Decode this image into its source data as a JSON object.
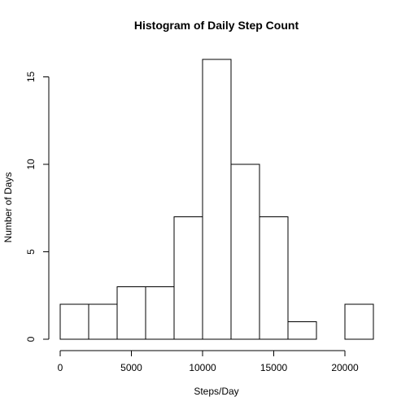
{
  "chart_data": {
    "type": "bar",
    "title": "Histogram of Daily Step Count",
    "xlabel": "Steps/Day",
    "ylabel": "Number of Days",
    "bin_edges": [
      0,
      2000,
      4000,
      6000,
      8000,
      10000,
      12000,
      14000,
      16000,
      18000,
      20000,
      22000
    ],
    "values": [
      2,
      2,
      3,
      3,
      7,
      16,
      10,
      7,
      1,
      0,
      2
    ],
    "xlim": [
      0,
      22000
    ],
    "ylim": [
      0,
      16
    ],
    "x_ticks": [
      0,
      5000,
      10000,
      15000,
      20000
    ],
    "x_tick_labels": [
      "0",
      "5000",
      "10000",
      "15000",
      "20000"
    ],
    "y_ticks": [
      0,
      5,
      10,
      15
    ],
    "y_tick_labels": [
      "0",
      "5",
      "10",
      "15"
    ],
    "grid": false,
    "colors": {
      "bar_fill": "#ffffff",
      "bar_stroke": "#000000"
    }
  }
}
